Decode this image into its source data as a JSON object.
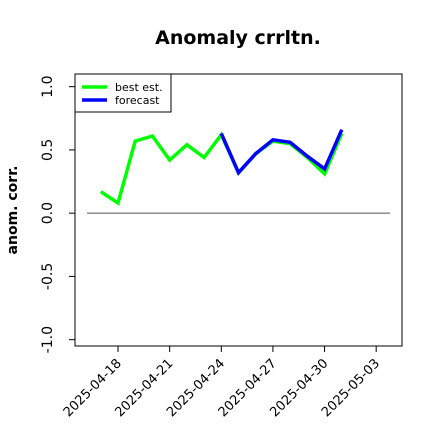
{
  "chart_data": {
    "type": "line",
    "title": "Anomaly crrltn.",
    "ylabel": "anom. corr.",
    "xlabel": "",
    "ylim": [
      -1.05,
      1.1
    ],
    "xlim": [
      "2025-04-15T12:00",
      "2025-05-04T12:00"
    ],
    "yticks": [
      -1.0,
      -0.5,
      0.0,
      0.5,
      1.0
    ],
    "ytick_labels": [
      "-1.0",
      "-0.5",
      "0.0",
      "0.5",
      "1.0"
    ],
    "xticks": [
      "2025-04-18",
      "2025-04-21",
      "2025-04-24",
      "2025-04-27",
      "2025-04-30",
      "2025-05-03"
    ],
    "xtick_labels": [
      "2025-04-18",
      "2025-04-21",
      "2025-04-24",
      "2025-04-27",
      "2025-04-30",
      "2025-05-03"
    ],
    "highlighted_xtick": "2025-04-24",
    "highlight_color": "#228b22",
    "reference_line": 0.0,
    "legend_position": "top-left",
    "grid": false,
    "series": [
      {
        "name": "best est.",
        "color": "#00ff00",
        "x": [
          "2025-04-17",
          "2025-04-18",
          "2025-04-19",
          "2025-04-20",
          "2025-04-21",
          "2025-04-22",
          "2025-04-23",
          "2025-04-24",
          "2025-04-25",
          "2025-04-26",
          "2025-04-27",
          "2025-04-28",
          "2025-04-29",
          "2025-04-30",
          "2025-05-01"
        ],
        "values": [
          0.17,
          0.08,
          0.57,
          0.61,
          0.42,
          0.54,
          0.44,
          0.62,
          0.32,
          0.47,
          0.57,
          0.55,
          0.44,
          0.31,
          0.63
        ]
      },
      {
        "name": "forecast",
        "color": "#0000ff",
        "x": [
          "2025-04-24",
          "2025-04-25",
          "2025-04-26",
          "2025-04-27",
          "2025-04-28",
          "2025-04-29",
          "2025-04-30",
          "2025-05-01"
        ],
        "values": [
          0.63,
          0.32,
          0.47,
          0.58,
          0.56,
          0.45,
          0.35,
          0.66
        ]
      }
    ]
  }
}
